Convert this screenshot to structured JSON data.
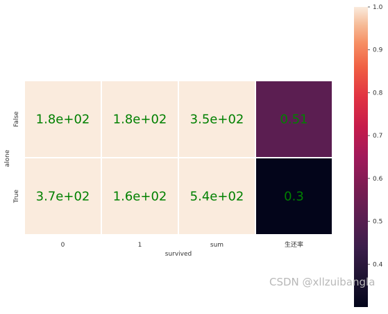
{
  "chart_data": {
    "type": "heatmap",
    "xlabel": "survived",
    "ylabel": "alone",
    "x_categories": [
      "0",
      "1",
      "sum",
      "生还率"
    ],
    "y_categories": [
      "False",
      "True"
    ],
    "annotations": [
      [
        "1.8e+02",
        "1.8e+02",
        "3.5e+02",
        "0.51"
      ],
      [
        "3.7e+02",
        "1.6e+02",
        "5.4e+02",
        "0.3"
      ]
    ],
    "values": [
      [
        180,
        180,
        350,
        0.51
      ],
      [
        370,
        160,
        540,
        0.3
      ]
    ],
    "color_scale": {
      "colormap": "rocket",
      "vmin": 0.3,
      "vmax": 1.0,
      "ticks": [
        "0.4",
        "0.5",
        "0.6",
        "0.7",
        "0.8",
        "0.9",
        "1.0"
      ],
      "tick_values": [
        0.4,
        0.5,
        0.6,
        0.7,
        0.8,
        0.9,
        1.0
      ]
    },
    "annotation_color": "#008000",
    "cell_border_color": "#ffffff"
  },
  "watermark": "CSDN @xllzuibangla"
}
